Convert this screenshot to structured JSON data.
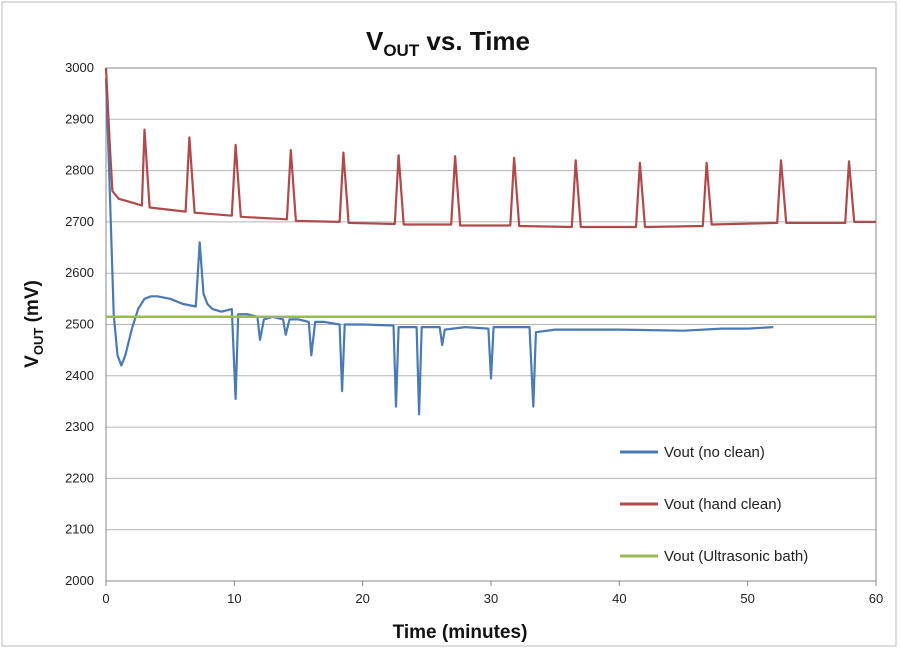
{
  "chart_data": {
    "type": "line",
    "title": {
      "main": "V",
      "sub": "OUT",
      "rest": " vs. Time"
    },
    "xlabel": "Time (minutes)",
    "ylabel": {
      "main": "V",
      "sub": "OUT",
      "rest": " (mV)"
    },
    "xlim": [
      0,
      60
    ],
    "ylim": [
      2000,
      3000
    ],
    "x_ticks": [
      "0",
      "10",
      "20",
      "30",
      "40",
      "50",
      "60"
    ],
    "y_ticks": [
      "2000",
      "2100",
      "2200",
      "2300",
      "2400",
      "2500",
      "2600",
      "2700",
      "2800",
      "2900",
      "3000"
    ],
    "grid": "horizontal",
    "legend_position": "bottom-right",
    "series": [
      {
        "name": "Vout (no clean)",
        "color": "#4a7ab5",
        "x": [
          0,
          0.3,
          0.6,
          0.9,
          1.2,
          1.5,
          2,
          2.5,
          3,
          3.5,
          4,
          5,
          6,
          7,
          7.3,
          7.6,
          7.9,
          8.3,
          9,
          9.8,
          10.1,
          10.3,
          10.6,
          11,
          11.8,
          12,
          12.3,
          13,
          13.8,
          14,
          14.3,
          15,
          15.8,
          16,
          16.3,
          17,
          18.2,
          18.4,
          18.6,
          20,
          22.4,
          22.6,
          22.8,
          24.2,
          24.4,
          24.6,
          26,
          26.2,
          26.4,
          28,
          29.8,
          30,
          30.2,
          33,
          33.3,
          33.5,
          35,
          40,
          45,
          48,
          50,
          52
        ],
        "y": [
          2980,
          2760,
          2520,
          2440,
          2420,
          2440,
          2490,
          2530,
          2550,
          2555,
          2555,
          2550,
          2540,
          2535,
          2660,
          2560,
          2540,
          2530,
          2525,
          2530,
          2355,
          2520,
          2520,
          2520,
          2515,
          2470,
          2510,
          2515,
          2510,
          2480,
          2510,
          2510,
          2505,
          2440,
          2505,
          2505,
          2500,
          2370,
          2500,
          2500,
          2498,
          2340,
          2495,
          2495,
          2325,
          2495,
          2495,
          2460,
          2490,
          2495,
          2492,
          2395,
          2495,
          2495,
          2340,
          2485,
          2490,
          2490,
          2488,
          2492,
          2492,
          2495
        ]
      },
      {
        "name": "Vout (hand clean)",
        "color": "#b04a4a",
        "x": [
          0,
          0.3,
          0.5,
          1,
          2,
          2.8,
          3.0,
          3.4,
          6.2,
          6.5,
          6.9,
          9.8,
          10.1,
          10.5,
          14.1,
          14.4,
          14.8,
          18.2,
          18.5,
          18.9,
          22.5,
          22.8,
          23.2,
          26.9,
          27.2,
          27.6,
          31.5,
          31.8,
          32.2,
          36.3,
          36.6,
          37.0,
          41.3,
          41.6,
          42.0,
          46.5,
          46.8,
          47.2,
          52.3,
          52.6,
          53.0,
          57.6,
          57.9,
          58.3,
          60
        ],
        "y": [
          3000,
          2850,
          2760,
          2745,
          2738,
          2732,
          2880,
          2728,
          2720,
          2865,
          2718,
          2712,
          2850,
          2710,
          2705,
          2840,
          2702,
          2700,
          2835,
          2698,
          2696,
          2830,
          2695,
          2695,
          2828,
          2693,
          2693,
          2825,
          2692,
          2690,
          2820,
          2690,
          2690,
          2815,
          2690,
          2692,
          2815,
          2695,
          2698,
          2820,
          2698,
          2698,
          2818,
          2700,
          2700
        ]
      },
      {
        "name": "Vout (Ultrasonic bath)",
        "color": "#99bb55",
        "x": [
          0,
          60
        ],
        "y": [
          2515,
          2515
        ]
      }
    ]
  }
}
